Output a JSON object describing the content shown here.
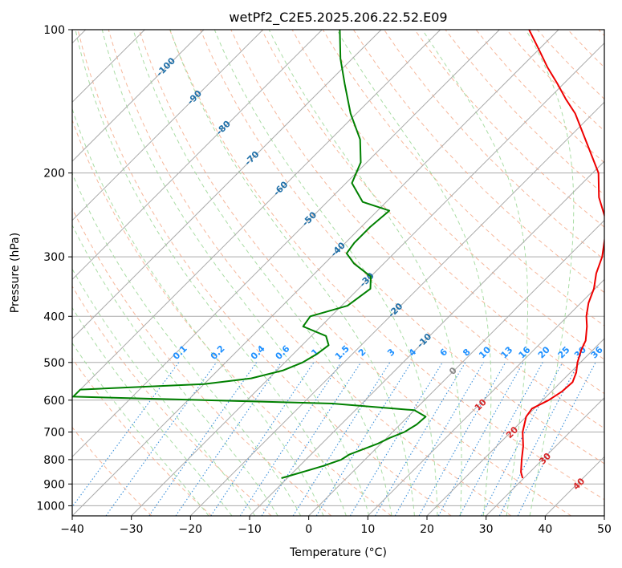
{
  "chart_data": {
    "type": "skew-t",
    "title": "wetPf2_C2E5.2025.206.22.52.E09",
    "xlabel": "Temperature (°C)",
    "ylabel": "Pressure (hPa)",
    "xlim": [
      -40,
      50
    ],
    "ylim": [
      1050,
      100
    ],
    "y_scale": "log",
    "skew_degrees": 45,
    "grid": true,
    "x_ticks": [
      -40,
      -30,
      -20,
      -10,
      0,
      10,
      20,
      30,
      40,
      50
    ],
    "x_tick_labels": [
      "−40",
      "−30",
      "−20",
      "−10",
      "0",
      "10",
      "20",
      "30",
      "40",
      "50"
    ],
    "y_ticks": [
      100,
      200,
      300,
      400,
      500,
      600,
      700,
      800,
      900,
      1000
    ],
    "y_tick_labels": [
      "100",
      "200",
      "300",
      "400",
      "500",
      "600",
      "700",
      "800",
      "900",
      "1000"
    ],
    "colors": {
      "temperature": "#ee0000",
      "dewpoint": "#008000",
      "isotherm": "#aaaaaa",
      "dry_adiabat": "#f4a582",
      "moist_adiabat": "#a1d99b",
      "mixing_ratio": "#3a8fd9",
      "isotherm_label": "#1f6fa8",
      "dry_adiabat_label": "#d62728",
      "mixing_ratio_label": "#1e90ff"
    },
    "series": [
      {
        "name": "",
        "role": "temperature",
        "points": [
          [
            875,
            29.8
          ],
          [
            850,
            28.5
          ],
          [
            800,
            26.5
          ],
          [
            750,
            24.5
          ],
          [
            700,
            22.0
          ],
          [
            650,
            20.0
          ],
          [
            625,
            19.6
          ],
          [
            600,
            21.0
          ],
          [
            575,
            21.8
          ],
          [
            550,
            22.0
          ],
          [
            525,
            21.0
          ],
          [
            500,
            19.5
          ],
          [
            470,
            18.0
          ],
          [
            450,
            17.2
          ],
          [
            420,
            15.0
          ],
          [
            400,
            13.2
          ],
          [
            375,
            11.3
          ],
          [
            350,
            9.8
          ],
          [
            325,
            7.6
          ],
          [
            300,
            5.8
          ],
          [
            275,
            3.2
          ],
          [
            250,
            0.0
          ],
          [
            225,
            -4.8
          ],
          [
            200,
            -9.0
          ],
          [
            175,
            -15.5
          ],
          [
            150,
            -23.0
          ],
          [
            140,
            -27.0
          ],
          [
            130,
            -31.0
          ],
          [
            120,
            -35.5
          ],
          [
            110,
            -40.0
          ],
          [
            100,
            -45.0
          ]
        ]
      },
      {
        "name": "",
        "role": "dewpoint",
        "points": [
          [
            875,
            -11.0
          ],
          [
            850,
            -8.5
          ],
          [
            825,
            -6.0
          ],
          [
            800,
            -4.0
          ],
          [
            780,
            -3.5
          ],
          [
            760,
            -2.0
          ],
          [
            740,
            -0.5
          ],
          [
            720,
            0.5
          ],
          [
            700,
            2.0
          ],
          [
            675,
            2.8
          ],
          [
            650,
            3.0
          ],
          [
            630,
            0.0
          ],
          [
            610,
            -15.0
          ],
          [
            590,
            -60.0
          ],
          [
            570,
            -60.0
          ],
          [
            555,
            -40.0
          ],
          [
            540,
            -33.0
          ],
          [
            520,
            -29.0
          ],
          [
            500,
            -27.0
          ],
          [
            480,
            -26.0
          ],
          [
            460,
            -25.5
          ],
          [
            440,
            -27.5
          ],
          [
            420,
            -33.0
          ],
          [
            400,
            -33.5
          ],
          [
            380,
            -29.0
          ],
          [
            350,
            -28.0
          ],
          [
            330,
            -30.0
          ],
          [
            310,
            -35.0
          ],
          [
            295,
            -38.0
          ],
          [
            280,
            -38.5
          ],
          [
            260,
            -38.5
          ],
          [
            240,
            -38.0
          ],
          [
            230,
            -44.0
          ],
          [
            210,
            -49.0
          ],
          [
            190,
            -51.0
          ],
          [
            170,
            -55.0
          ],
          [
            150,
            -61.0
          ],
          [
            130,
            -67.0
          ],
          [
            115,
            -72.0
          ],
          [
            100,
            -77.0
          ]
        ]
      }
    ],
    "isotherm_labels": [
      "-100",
      "-90",
      "-80",
      "-70",
      "-60",
      "-50",
      "-40",
      "-30",
      "-20",
      "-10",
      "0"
    ],
    "dry_adiabat_labels": [
      "10",
      "20",
      "30",
      "40"
    ],
    "mixing_ratio_labels": [
      "0.1",
      "0.2",
      "0.4",
      "0.6",
      "1",
      "1.5",
      "2",
      "3",
      "4",
      "6",
      "8",
      "10",
      "13",
      "16",
      "20",
      "25",
      "30",
      "36"
    ],
    "mixing_ratio_values": [
      0.1,
      0.2,
      0.4,
      0.6,
      1,
      1.5,
      2,
      3,
      4,
      6,
      8,
      10,
      13,
      16,
      20,
      25,
      30,
      36
    ]
  }
}
